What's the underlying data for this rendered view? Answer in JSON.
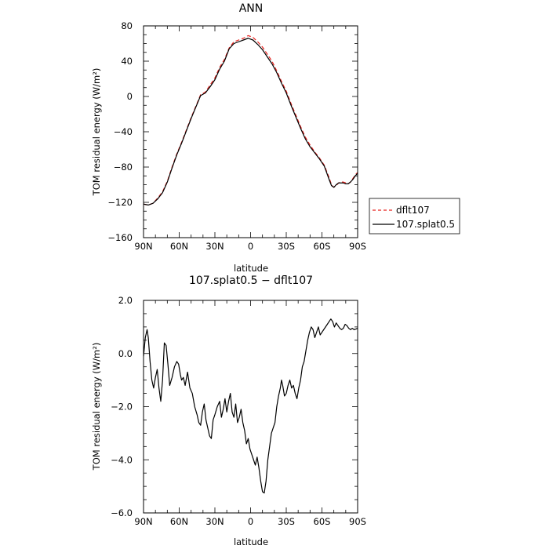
{
  "chart_data": [
    {
      "type": "line",
      "title": "ANN",
      "xlabel": "",
      "ylabel": "TOM residual energy (W/m²)",
      "xlim": [
        90,
        -90
      ],
      "ylim": [
        -160,
        80
      ],
      "x_ticks": [
        90,
        60,
        30,
        0,
        -30,
        -60,
        -90
      ],
      "x_tick_labels": [
        "90N",
        "60N",
        "30N",
        "0",
        "30S",
        "60S",
        "90S"
      ],
      "y_ticks": [
        -160,
        -120,
        -80,
        -40,
        0,
        40,
        80
      ],
      "y_tick_labels": [
        "−160",
        "−120",
        "−80",
        "−40",
        "0",
        "40",
        "80"
      ],
      "legend_position": "right",
      "series": [
        {
          "name": "dflt107",
          "color": "#e8231f",
          "dash": "dashed",
          "x": [
            90,
            86,
            82,
            78,
            74,
            70,
            66,
            62,
            58,
            54,
            50,
            46,
            42,
            38,
            34,
            30,
            26,
            22,
            18,
            14,
            10,
            6,
            2,
            0,
            -2,
            -6,
            -10,
            -14,
            -18,
            -22,
            -26,
            -30,
            -34,
            -38,
            -42,
            -46,
            -50,
            -54,
            -58,
            -62,
            -66,
            -68,
            -70,
            -72,
            -74,
            -76,
            -78,
            -80,
            -82,
            -84,
            -86,
            -88,
            -90
          ],
          "y": [
            -122,
            -123,
            -121,
            -115,
            -108,
            -96,
            -80,
            -65,
            -52,
            -38,
            -24,
            -11,
            2,
            5,
            13,
            21,
            33,
            42,
            55,
            62,
            64,
            66,
            69,
            68,
            67,
            62,
            56,
            48,
            40,
            29,
            17,
            6,
            -8,
            -21,
            -34,
            -46,
            -55,
            -63,
            -70,
            -78,
            -92,
            -100,
            -103,
            -101,
            -98,
            -97,
            -97,
            -98,
            -99,
            -97,
            -93,
            -89,
            -86
          ]
        },
        {
          "name": "107.splat0.5",
          "color": "#000000",
          "dash": "solid",
          "x": [
            90,
            86,
            82,
            78,
            74,
            70,
            66,
            62,
            58,
            54,
            50,
            46,
            42,
            38,
            34,
            30,
            26,
            22,
            18,
            14,
            10,
            6,
            2,
            0,
            -2,
            -6,
            -10,
            -14,
            -18,
            -22,
            -26,
            -30,
            -34,
            -38,
            -42,
            -46,
            -50,
            -54,
            -58,
            -62,
            -66,
            -68,
            -70,
            -72,
            -74,
            -76,
            -78,
            -80,
            -82,
            -84,
            -86,
            -88,
            -90
          ],
          "y": [
            -122,
            -123,
            -121,
            -116,
            -109,
            -97,
            -81,
            -66,
            -53,
            -39,
            -25,
            -12,
            1,
            4,
            11,
            19,
            31,
            40,
            54,
            60,
            62,
            64,
            66,
            65,
            64,
            59,
            53,
            45,
            37,
            27,
            15,
            4,
            -10,
            -23,
            -36,
            -48,
            -57,
            -64,
            -71,
            -79,
            -94,
            -101,
            -103,
            -100,
            -98,
            -98,
            -98,
            -99,
            -99,
            -97,
            -94,
            -90,
            -87
          ]
        }
      ]
    },
    {
      "type": "line",
      "title": "107.splat0.5 − dflt107",
      "xlabel": "latitude",
      "ylabel": "TOM residual energy (W/m²)",
      "xlim": [
        90,
        -90
      ],
      "ylim": [
        -6,
        2
      ],
      "x_ticks": [
        90,
        60,
        30,
        0,
        -30,
        -60,
        -90
      ],
      "x_tick_labels": [
        "90N",
        "60N",
        "30N",
        "0",
        "30S",
        "60S",
        "90S"
      ],
      "y_ticks": [
        -6,
        -4,
        -2,
        0,
        2
      ],
      "y_tick_labels": [
        "−6.0",
        "−4.0",
        "−2.0",
        "0.0",
        "2.0"
      ],
      "series": [
        {
          "color": "#000000",
          "dash": "solid",
          "x": [
            90,
            88.5,
            87,
            86,
            84.5,
            83,
            81.5,
            80,
            78.5,
            77,
            75.5,
            74,
            72.5,
            71,
            69.5,
            68,
            66,
            64,
            62,
            60.5,
            59,
            58,
            56.5,
            55,
            53,
            51,
            49,
            47,
            45,
            43.5,
            42,
            40.5,
            39,
            37.5,
            36,
            34.5,
            33,
            31.5,
            30,
            28,
            26,
            24.5,
            23,
            21.5,
            20,
            18.5,
            17,
            15.5,
            14,
            12.5,
            11,
            9.5,
            8,
            6.5,
            5,
            3.5,
            2,
            0.5,
            -1,
            -2.5,
            -4,
            -5.5,
            -7,
            -8.5,
            -10,
            -11.5,
            -13,
            -14.5,
            -16,
            -17.5,
            -19,
            -20.5,
            -22,
            -23.5,
            -25,
            -26,
            -27,
            -28.5,
            -30,
            -31.5,
            -33,
            -34.5,
            -36,
            -37.5,
            -39,
            -40.5,
            -42,
            -43.5,
            -45,
            -46.5,
            -48,
            -49.5,
            -51,
            -52.5,
            -54,
            -55.5,
            -57,
            -58.5,
            -60,
            -61.5,
            -63,
            -64.5,
            -66,
            -67.5,
            -69,
            -70.5,
            -72,
            -73.5,
            -75,
            -76.5,
            -78,
            -79.5,
            -81,
            -82.5,
            -84,
            -85.5,
            -87,
            -88.5,
            -90
          ],
          "y": [
            -0.1,
            0.6,
            0.9,
            0.6,
            -0.3,
            -1.0,
            -1.3,
            -0.9,
            -0.6,
            -1.3,
            -1.8,
            -1.0,
            0.4,
            0.3,
            -0.4,
            -1.2,
            -0.9,
            -0.5,
            -0.3,
            -0.4,
            -0.8,
            -1.0,
            -0.9,
            -1.2,
            -0.7,
            -1.3,
            -1.5,
            -2.0,
            -2.3,
            -2.6,
            -2.7,
            -2.2,
            -1.9,
            -2.5,
            -2.8,
            -3.1,
            -3.2,
            -2.5,
            -2.3,
            -2.0,
            -1.8,
            -2.4,
            -2.1,
            -1.7,
            -2.2,
            -1.8,
            -1.5,
            -2.2,
            -2.4,
            -1.9,
            -2.6,
            -2.4,
            -2.1,
            -2.6,
            -2.9,
            -3.4,
            -3.2,
            -3.6,
            -3.8,
            -4.0,
            -4.2,
            -3.9,
            -4.3,
            -4.8,
            -5.2,
            -5.25,
            -4.8,
            -4.0,
            -3.5,
            -3.0,
            -2.8,
            -2.6,
            -2.0,
            -1.6,
            -1.3,
            -1.0,
            -1.2,
            -1.6,
            -1.5,
            -1.2,
            -1.0,
            -1.3,
            -1.2,
            -1.5,
            -1.7,
            -1.3,
            -1.0,
            -0.5,
            -0.3,
            0.1,
            0.5,
            0.8,
            1.0,
            0.9,
            0.6,
            0.8,
            1.0,
            0.7,
            0.8,
            0.9,
            1.0,
            1.1,
            1.2,
            1.3,
            1.2,
            1.0,
            1.15,
            1.05,
            0.95,
            0.9,
            0.95,
            1.1,
            1.05,
            0.95,
            0.9,
            0.95,
            0.9,
            0.92,
            0.95
          ]
        }
      ]
    }
  ],
  "top_xlabel": "latitude"
}
